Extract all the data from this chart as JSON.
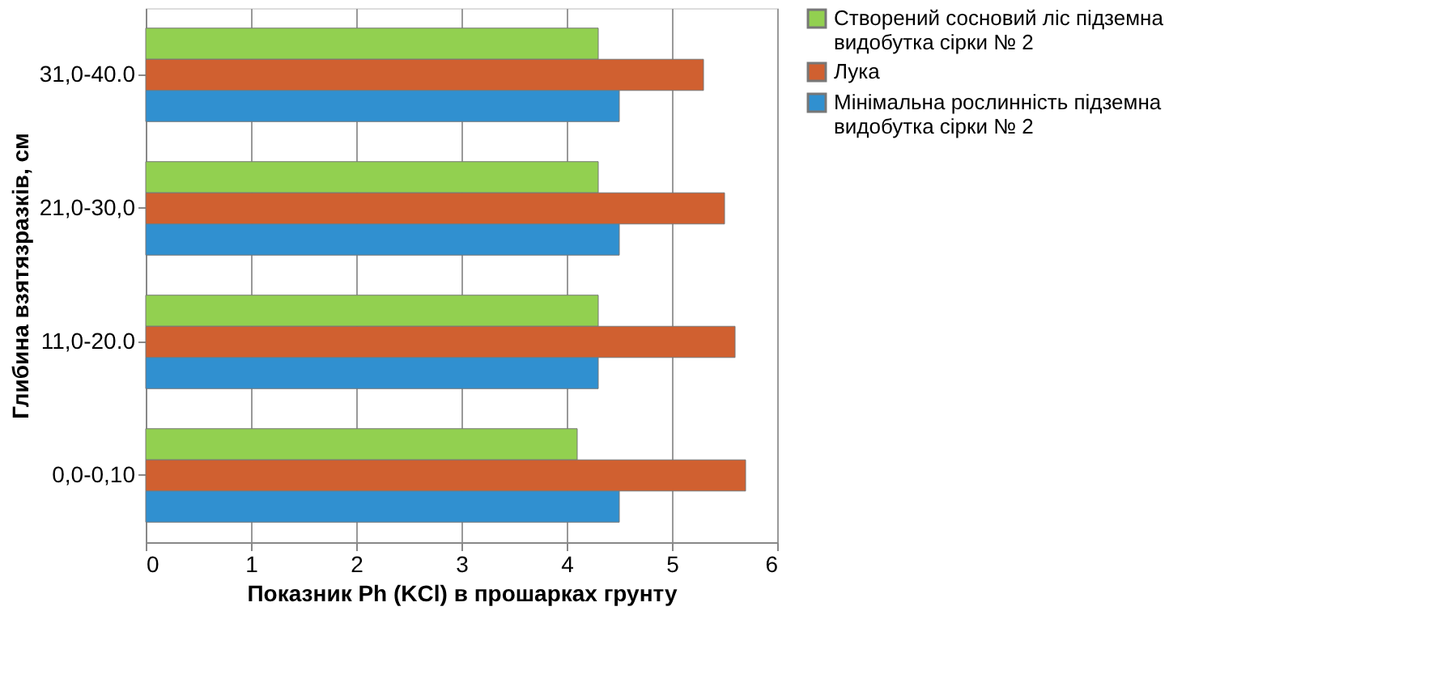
{
  "chart_data": {
    "type": "bar",
    "orientation": "horizontal",
    "xlabel": "Показник Ph (KCl) в прошарках грунту",
    "ylabel": "Глибина взятязразків, см",
    "categories": [
      "31,0-40.0",
      "21,0-30,0",
      "11,0-20.0",
      "0,0-0,10"
    ],
    "series": [
      {
        "name": "Створений сосновий ліс підземна видобутка сірки № 2",
        "color": "#92d050",
        "values": [
          4.3,
          4.3,
          4.3,
          4.1
        ]
      },
      {
        "name": "Лука",
        "color": "#d06030",
        "values": [
          5.3,
          5.5,
          5.6,
          5.7
        ]
      },
      {
        "name": "Мінімальна рослинність підземна видобутка сірки № 2",
        "color": "#3090d0",
        "values": [
          4.5,
          4.5,
          4.3,
          4.5
        ]
      }
    ],
    "xlim": [
      0,
      6
    ],
    "xticks": [
      0,
      1,
      2,
      3,
      4,
      5,
      6
    ],
    "grid": "x",
    "legend": "right"
  }
}
